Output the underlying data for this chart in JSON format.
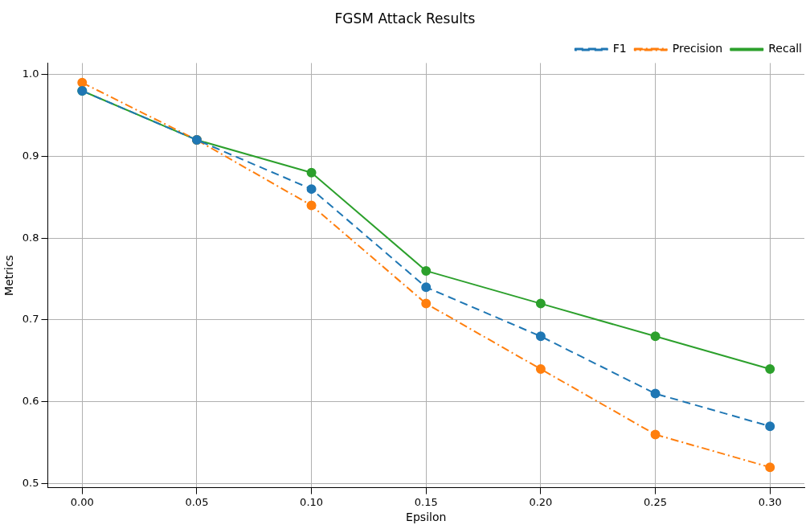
{
  "chart_data": {
    "type": "line",
    "title": "FGSM Attack Results",
    "xlabel": "Epsilon",
    "ylabel": "Metrics",
    "x": [
      0,
      0.05,
      0.1,
      0.15,
      0.2,
      0.25,
      0.3
    ],
    "series": [
      {
        "name": "F1",
        "color": "#1f77b4",
        "line_style": "dashed",
        "values": [
          0.98,
          0.92,
          0.86,
          0.74,
          0.68,
          0.61,
          0.57
        ]
      },
      {
        "name": "Precision",
        "color": "#ff7f0e",
        "line_style": "dashdot",
        "values": [
          0.99,
          0.92,
          0.84,
          0.72,
          0.64,
          0.56,
          0.52
        ]
      },
      {
        "name": "Recall",
        "color": "#2ca02c",
        "line_style": "solid",
        "values": [
          0.98,
          0.92,
          0.88,
          0.76,
          0.72,
          0.68,
          0.64
        ]
      }
    ],
    "xlim": [
      -0.015,
      0.315
    ],
    "xticks": [
      {
        "value": 0,
        "label": "0.00"
      },
      {
        "value": 0.05,
        "label": "0.05"
      },
      {
        "value": 0.1,
        "label": "0.10"
      },
      {
        "value": 0.15,
        "label": "0.15"
      },
      {
        "value": 0.2,
        "label": "0.20"
      },
      {
        "value": 0.25,
        "label": "0.25"
      },
      {
        "value": 0.3,
        "label": "0.30"
      }
    ],
    "ylim": [
      0.495,
      1.014
    ],
    "yticks": [
      {
        "value": 0.5,
        "label": "0.5"
      },
      {
        "value": 0.6,
        "label": "0.6"
      },
      {
        "value": 0.7,
        "label": "0.7"
      },
      {
        "value": 0.8,
        "label": "0.8"
      },
      {
        "value": 0.9,
        "label": "0.9"
      },
      {
        "value": 1,
        "label": "1.0"
      }
    ],
    "grid": true,
    "legend": "top right",
    "marker": "circle"
  }
}
